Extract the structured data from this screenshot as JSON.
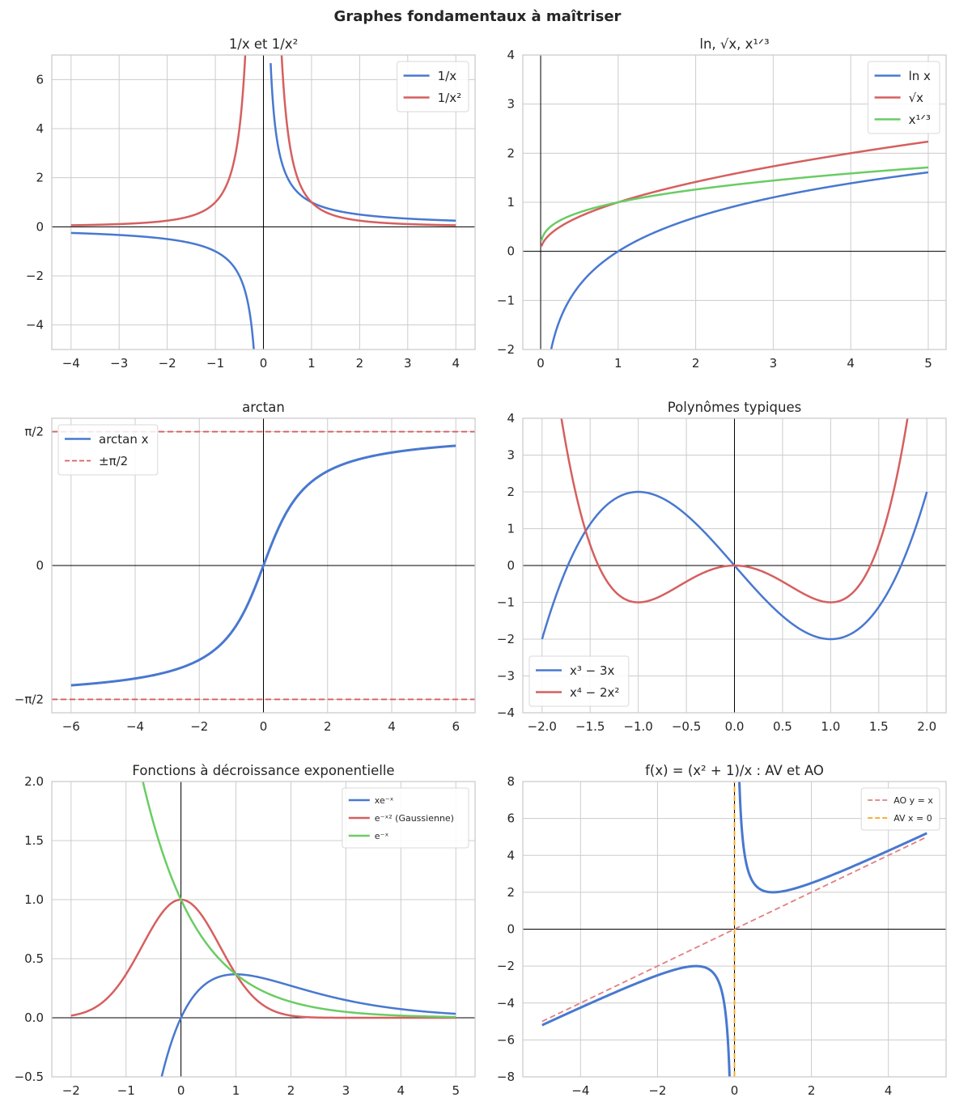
{
  "suptitle": "Graphes fondamentaux à maîtriser",
  "chart_data": [
    {
      "type": "line",
      "title": "1/x et 1/x²",
      "xlim": [
        -4.4,
        4.4
      ],
      "ylim": [
        -5,
        7
      ],
      "xticks": [
        -4,
        -3,
        -2,
        -1,
        0,
        1,
        2,
        3,
        4
      ],
      "yticks": [
        -4,
        -2,
        0,
        2,
        4,
        6
      ],
      "grid": true,
      "legend": "top-right",
      "legend_size": "normal",
      "series": [
        {
          "name": "1/x",
          "expr": "1/x",
          "domain": [
            -4,
            4
          ],
          "exclude": 0.15,
          "color": "#4878d0",
          "style": "solid"
        },
        {
          "name": "1/x²",
          "expr": "1/x^2",
          "domain": [
            -4,
            4
          ],
          "exclude": 0.15,
          "color": "#d65f5f",
          "style": "solid"
        }
      ]
    },
    {
      "type": "line",
      "title": "ln, √x, x¹ᐟ³",
      "xlim": [
        -0.23,
        5.23
      ],
      "ylim": [
        -2,
        4
      ],
      "xticks": [
        0,
        1,
        2,
        3,
        4,
        5
      ],
      "yticks": [
        -2,
        -1,
        0,
        1,
        2,
        3,
        4
      ],
      "grid": true,
      "legend": "top-right",
      "legend_size": "normal",
      "series": [
        {
          "name": "ln x",
          "expr": "ln(x)",
          "domain": [
            0.01,
            5
          ],
          "color": "#4878d0",
          "style": "solid"
        },
        {
          "name": "√x",
          "expr": "sqrt(x)",
          "domain": [
            0.01,
            5
          ],
          "color": "#d65f5f",
          "style": "solid"
        },
        {
          "name": "x¹ᐟ³",
          "expr": "x^(1/3)",
          "domain": [
            0.01,
            5
          ],
          "color": "#6acc64",
          "style": "solid"
        }
      ]
    },
    {
      "type": "line",
      "title": "arctan",
      "xlim": [
        -6.6,
        6.6
      ],
      "ylim": [
        -1.728,
        1.728
      ],
      "xticks": [
        -6,
        -4,
        -2,
        0,
        2,
        4,
        6
      ],
      "yticks": [
        -1.5708,
        0,
        1.5708
      ],
      "ytick_labels": [
        "−π/2",
        "0",
        "π/2"
      ],
      "grid": true,
      "legend": "top-left",
      "legend_size": "normal",
      "series": [
        {
          "name": "arctan x",
          "expr": "arctan(x)",
          "domain": [
            -6,
            6
          ],
          "color": "#4878d0",
          "style": "solid",
          "width": 3
        },
        {
          "name": "±π/2",
          "expr": "pi/2",
          "domain": [
            -6.6,
            6.6
          ],
          "color": "#d65f5f",
          "style": "dashed"
        },
        {
          "expr": "-pi/2",
          "domain": [
            -6.6,
            6.6
          ],
          "color": "#d65f5f",
          "style": "dashed"
        }
      ]
    },
    {
      "type": "line",
      "title": "Polynômes typiques",
      "xlim": [
        -2.2,
        2.2
      ],
      "ylim": [
        -4,
        4
      ],
      "xticks": [
        -2.0,
        -1.5,
        -1.0,
        -0.5,
        0.0,
        0.5,
        1.0,
        1.5,
        2.0
      ],
      "xtick_labels": [
        "−2.0",
        "−1.5",
        "−1.0",
        "−0.5",
        "0.0",
        "0.5",
        "1.0",
        "1.5",
        "2.0"
      ],
      "yticks": [
        -4,
        -3,
        -2,
        -1,
        0,
        1,
        2,
        3,
        4
      ],
      "grid": true,
      "legend": "bottom-left",
      "legend_size": "normal",
      "series": [
        {
          "name": "x³ − 3x",
          "expr": "x^3-3x",
          "domain": [
            -2,
            2
          ],
          "color": "#4878d0",
          "style": "solid"
        },
        {
          "name": "x⁴ − 2x²",
          "expr": "x^4-2x^2",
          "domain": [
            -2,
            2
          ],
          "color": "#d65f5f",
          "style": "solid"
        }
      ]
    },
    {
      "type": "line",
      "title": "Fonctions à décroissance exponentielle",
      "xlim": [
        -2.35,
        5.35
      ],
      "ylim": [
        -0.5,
        2
      ],
      "xticks": [
        -2,
        -1,
        0,
        1,
        2,
        3,
        4,
        5
      ],
      "yticks": [
        -0.5,
        0,
        0.5,
        1,
        1.5,
        2
      ],
      "ytick_labels": [
        "−0.5",
        "0.0",
        "0.5",
        "1.0",
        "1.5",
        "2.0"
      ],
      "grid": true,
      "legend": "top-right",
      "legend_size": "small",
      "series": [
        {
          "name": "xe⁻ˣ",
          "expr": "x*exp(-x)",
          "domain": [
            -2,
            5
          ],
          "color": "#4878d0",
          "style": "solid"
        },
        {
          "name": "e⁻ˣ² (Gaussienne)",
          "expr": "exp(-x^2)",
          "domain": [
            -2,
            5
          ],
          "color": "#d65f5f",
          "style": "solid"
        },
        {
          "name": "e⁻ˣ",
          "expr": "exp(-x)",
          "domain": [
            -2,
            5
          ],
          "color": "#6acc64",
          "style": "solid"
        }
      ]
    },
    {
      "type": "line",
      "title": "f(x) = (x² + 1)/x : AV et AO",
      "xlim": [
        -5.5,
        5.5
      ],
      "ylim": [
        -8,
        8
      ],
      "xticks": [
        -4,
        -2,
        0,
        2,
        4
      ],
      "yticks": [
        -8,
        -6,
        -4,
        -2,
        0,
        2,
        4,
        6,
        8
      ],
      "grid": true,
      "legend": "top-right",
      "legend_size": "small",
      "series": [
        {
          "expr": "(x^2+1)/x",
          "domain": [
            -5,
            5
          ],
          "exclude": 0.1,
          "color": "#4878d0",
          "style": "solid",
          "width": 3
        },
        {
          "name": "AO y = x",
          "expr": "x",
          "domain": [
            -5,
            5
          ],
          "color": "#e08080",
          "style": "dashed"
        },
        {
          "name": "AV x = 0",
          "expr": "vertical:0",
          "domain": [
            -8,
            8
          ],
          "color": "#f5a623",
          "style": "dashed"
        }
      ]
    }
  ]
}
